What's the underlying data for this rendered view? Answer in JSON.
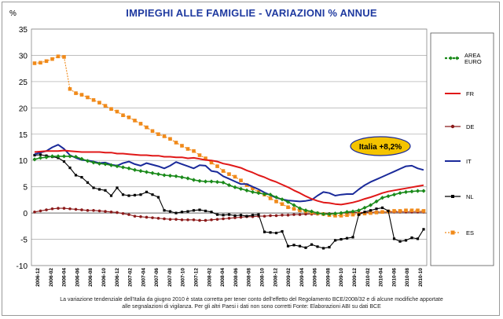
{
  "chart_data": {
    "type": "line",
    "title": "IMPIEGHI ALLE FAMIGLIE - VARIAZIONI % ANNUE",
    "ylabel": "%",
    "ylim": [
      -10,
      35
    ],
    "yticks": [
      -10,
      -5,
      0,
      5,
      10,
      15,
      20,
      25,
      30,
      35
    ],
    "grid": true,
    "legend_position": "right",
    "x_tick_labels": [
      "2006-12",
      "2006-02",
      "2006-04",
      "2006-06",
      "2006-08",
      "2006-10",
      "2006-12",
      "2007-02",
      "2007-04",
      "2007-06",
      "2007-08",
      "2007-10",
      "2007-12",
      "2008-02",
      "2008-04",
      "2008-06",
      "2008-08",
      "2008-10",
      "2008-12",
      "2009-02",
      "2009-04",
      "2009-06",
      "2009-08",
      "2009-10",
      "2009-12",
      "2010-02",
      "2010-04",
      "2010-06",
      "2010-08",
      "2010-10"
    ],
    "series": [
      {
        "name": "AREA EURO",
        "color": "#1a8a1a",
        "marker": "diamond",
        "values": [
          10.2,
          10.5,
          10.6,
          10.8,
          10.8,
          10.8,
          10.8,
          10.7,
          10.3,
          9.9,
          9.6,
          9.4,
          9.3,
          9.1,
          8.9,
          8.7,
          8.5,
          8.2,
          8.0,
          7.8,
          7.6,
          7.4,
          7.2,
          7.1,
          7.0,
          6.8,
          6.6,
          6.3,
          6.1,
          6.0,
          6.0,
          5.9,
          5.8,
          5.3,
          4.9,
          4.6,
          4.3,
          4.0,
          3.8,
          3.6,
          3.5,
          3.0,
          2.6,
          2.1,
          1.5,
          0.9,
          0.5,
          0.3,
          0.0,
          -0.2,
          -0.2,
          -0.1,
          0.0,
          0.2,
          0.3,
          0.5,
          1.0,
          1.5,
          2.2,
          2.9,
          3.2,
          3.5,
          3.8,
          4.0,
          4.1,
          4.2,
          4.2
        ]
      },
      {
        "name": "FR",
        "color": "#e01818",
        "marker": "none",
        "values": [
          11.6,
          11.7,
          11.8,
          11.8,
          11.8,
          11.9,
          11.8,
          11.7,
          11.6,
          11.6,
          11.6,
          11.6,
          11.5,
          11.5,
          11.3,
          11.3,
          11.2,
          11.1,
          11.0,
          11.0,
          10.9,
          10.9,
          10.7,
          10.7,
          10.6,
          10.6,
          10.4,
          10.5,
          10.3,
          10.1,
          10.0,
          9.8,
          9.4,
          9.2,
          8.9,
          8.6,
          8.1,
          7.7,
          7.2,
          6.8,
          6.3,
          5.9,
          5.4,
          4.9,
          4.3,
          3.8,
          3.2,
          2.7,
          2.3,
          2.0,
          1.9,
          1.7,
          1.6,
          1.8,
          2.0,
          2.3,
          2.7,
          3.0,
          3.4,
          3.8,
          4.1,
          4.3,
          4.5,
          4.7,
          4.9,
          5.1,
          5.3
        ]
      },
      {
        "name": "DE",
        "color": "#8b1a1a",
        "marker": "circle",
        "values": [
          0.2,
          0.4,
          0.6,
          0.8,
          0.9,
          0.9,
          0.8,
          0.7,
          0.6,
          0.5,
          0.5,
          0.4,
          0.3,
          0.2,
          0.1,
          -0.1,
          -0.3,
          -0.6,
          -0.7,
          -0.8,
          -0.9,
          -1.0,
          -1.1,
          -1.2,
          -1.2,
          -1.3,
          -1.3,
          -1.3,
          -1.4,
          -1.4,
          -1.3,
          -1.2,
          -1.1,
          -1.0,
          -0.9,
          -0.8,
          -0.7,
          -0.7,
          -0.6,
          -0.6,
          -0.5,
          -0.5,
          -0.4,
          -0.4,
          -0.3,
          -0.3,
          -0.2,
          -0.2,
          -0.2,
          -0.1,
          -0.1,
          -0.1,
          0.0,
          0.0,
          0.1,
          0.1,
          0.1,
          0.1,
          0.2,
          0.2,
          0.2,
          0.2,
          0.2,
          0.2,
          0.2,
          0.2,
          0.2
        ]
      },
      {
        "name": "IT",
        "color": "#1a2a9a",
        "marker": "none",
        "values": [
          11.2,
          11.5,
          11.8,
          12.5,
          13.0,
          12.2,
          11.0,
          10.5,
          10.1,
          10.0,
          9.8,
          9.5,
          9.6,
          9.2,
          9.0,
          9.5,
          9.8,
          9.3,
          9.0,
          9.5,
          9.2,
          8.9,
          8.5,
          9.0,
          9.7,
          9.3,
          8.9,
          8.5,
          9.1,
          9.0,
          8.0,
          7.8,
          7.0,
          6.5,
          6.0,
          5.5,
          5.5,
          5.0,
          4.5,
          3.9,
          3.4,
          2.9,
          2.6,
          2.4,
          2.3,
          2.2,
          2.3,
          2.5,
          3.3,
          4.0,
          3.8,
          3.3,
          3.5,
          3.6,
          3.6,
          4.5,
          5.3,
          5.9,
          6.4,
          6.9,
          7.4,
          7.9,
          8.4,
          8.9,
          9.0,
          8.5,
          8.2
        ]
      },
      {
        "name": "NL",
        "color": "#000000",
        "marker": "square",
        "values": [
          11.0,
          11.1,
          10.9,
          10.7,
          10.5,
          9.8,
          8.6,
          7.2,
          6.8,
          5.8,
          4.8,
          4.5,
          4.3,
          3.3,
          4.8,
          3.5,
          3.3,
          3.4,
          3.5,
          4.0,
          3.5,
          3.0,
          0.5,
          0.3,
          0.0,
          0.2,
          0.3,
          0.5,
          0.6,
          0.4,
          0.2,
          -0.3,
          -0.4,
          -0.3,
          -0.5,
          -0.4,
          -0.6,
          -0.4,
          -0.3,
          -3.6,
          -3.7,
          -3.8,
          -3.5,
          -6.3,
          -6.1,
          -6.3,
          -6.6,
          -6.0,
          -6.4,
          -6.7,
          -6.5,
          -5.2,
          -5.0,
          -4.8,
          -4.6,
          -0.3,
          0.2,
          0.5,
          0.8,
          1.0,
          0.4,
          -4.9,
          -5.4,
          -5.2,
          -4.7,
          -4.9,
          -3.1
        ]
      },
      {
        "name": "ES",
        "color": "#f08a1a",
        "marker": "square",
        "values": [
          28.5,
          28.6,
          28.9,
          29.3,
          29.8,
          29.7,
          23.6,
          22.8,
          22.5,
          22.0,
          21.5,
          21.0,
          20.4,
          19.8,
          19.3,
          18.6,
          18.2,
          17.6,
          17.0,
          16.3,
          15.6,
          15.0,
          14.6,
          14.1,
          13.4,
          12.8,
          12.2,
          11.8,
          11.0,
          10.4,
          9.6,
          8.9,
          8.0,
          7.4,
          6.9,
          6.2,
          5.3,
          4.7,
          4.0,
          3.5,
          2.8,
          2.2,
          1.7,
          1.1,
          0.8,
          0.5,
          0.3,
          0.1,
          -0.1,
          -0.2,
          -0.4,
          -0.5,
          -0.5,
          -0.4,
          -0.3,
          -0.2,
          -0.1,
          0.0,
          0.1,
          0.2,
          0.3,
          0.4,
          0.4,
          0.5,
          0.5,
          0.5,
          0.4
        ]
      }
    ],
    "annotation": "Italia +8,2%"
  },
  "legend": {
    "area_euro_line1": "AREA",
    "area_euro_line2": "EURO",
    "fr": "FR",
    "de": "DE",
    "it": "IT",
    "nl": "NL",
    "es": "ES"
  },
  "footnote_line1": "La variazione tendenziale dell'Italia da giugno 2010 è stata corretta per tener conto dell'effetto del Regolamento BCE/2008/32 e di alcune modifiche apportate",
  "footnote_line2": "alle segnalazioni di vigilanza. Per gli altri Paesi i dati non sono corretti Fonte: Elaborazioni ABI su dati BCE"
}
